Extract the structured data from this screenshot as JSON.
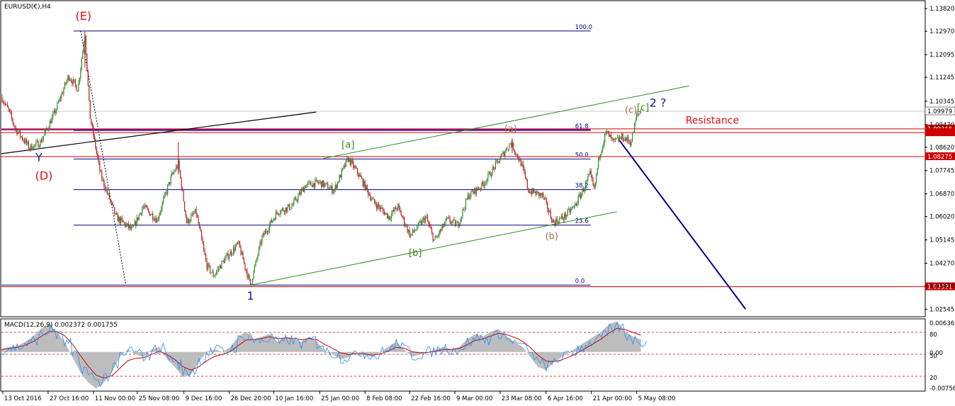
{
  "chart_data": {
    "type": "candlestick",
    "symbol_label": "EURUSD(€),H4",
    "y_axis": {
      "min": 1.0229,
      "max": 1.1409,
      "ticks": [
        "1.13820",
        "1.12970",
        "1.12095",
        "1.11245",
        "1.10345",
        "1.09470",
        "1.08620",
        "1.07745",
        "1.06870",
        "1.06020",
        "1.05145",
        "1.04270",
        "1.03420",
        "1.02545"
      ]
    },
    "x_axis": {
      "ticks": [
        "13 Oct 2016",
        "27 Oct 16:00",
        "11 Nov 00:00",
        "25 Nov 08:00",
        "9 Dec 16:00",
        "26 Dec 20:00",
        "10 Jan 16:00",
        "25 Jan 00:00",
        "8 Feb 08:00",
        "22 Feb 16:00",
        "9 Mar 00:00",
        "23 Mar 08:00",
        "6 Apr 16:00",
        "21 Apr 00:00",
        "5 May 08:00"
      ]
    },
    "price_path": [
      {
        "t": 0,
        "p": 1.105
      },
      {
        "t": 10,
        "p": 1.1
      },
      {
        "t": 20,
        "p": 1.093
      },
      {
        "t": 40,
        "p": 1.086
      },
      {
        "t": 55,
        "p": 1.088
      },
      {
        "t": 75,
        "p": 1.099
      },
      {
        "t": 95,
        "p": 1.113
      },
      {
        "t": 108,
        "p": 1.108
      },
      {
        "t": 118,
        "p": 1.129
      },
      {
        "t": 125,
        "p": 1.098
      },
      {
        "t": 140,
        "p": 1.076
      },
      {
        "t": 162,
        "p": 1.06
      },
      {
        "t": 185,
        "p": 1.055
      },
      {
        "t": 200,
        "p": 1.064
      },
      {
        "t": 220,
        "p": 1.059
      },
      {
        "t": 240,
        "p": 1.075
      },
      {
        "t": 250,
        "p": 1.08
      },
      {
        "t": 262,
        "p": 1.058
      },
      {
        "t": 275,
        "p": 1.062
      },
      {
        "t": 290,
        "p": 1.042
      },
      {
        "t": 300,
        "p": 1.038
      },
      {
        "t": 315,
        "p": 1.044
      },
      {
        "t": 335,
        "p": 1.05
      },
      {
        "t": 352,
        "p": 1.0345
      },
      {
        "t": 368,
        "p": 1.052
      },
      {
        "t": 390,
        "p": 1.062
      },
      {
        "t": 410,
        "p": 1.064
      },
      {
        "t": 430,
        "p": 1.072
      },
      {
        "t": 450,
        "p": 1.073
      },
      {
        "t": 470,
        "p": 1.07
      },
      {
        "t": 490,
        "p": 1.082
      },
      {
        "t": 505,
        "p": 1.076
      },
      {
        "t": 525,
        "p": 1.066
      },
      {
        "t": 548,
        "p": 1.06
      },
      {
        "t": 560,
        "p": 1.064
      },
      {
        "t": 578,
        "p": 1.053
      },
      {
        "t": 600,
        "p": 1.06
      },
      {
        "t": 612,
        "p": 1.051
      },
      {
        "t": 630,
        "p": 1.059
      },
      {
        "t": 645,
        "p": 1.057
      },
      {
        "t": 660,
        "p": 1.068
      },
      {
        "t": 680,
        "p": 1.072
      },
      {
        "t": 700,
        "p": 1.08
      },
      {
        "t": 720,
        "p": 1.088
      },
      {
        "t": 735,
        "p": 1.08
      },
      {
        "t": 745,
        "p": 1.07
      },
      {
        "t": 765,
        "p": 1.068
      },
      {
        "t": 780,
        "p": 1.058
      },
      {
        "t": 795,
        "p": 1.06
      },
      {
        "t": 810,
        "p": 1.064
      },
      {
        "t": 822,
        "p": 1.07
      },
      {
        "t": 832,
        "p": 1.076
      },
      {
        "t": 838,
        "p": 1.07
      },
      {
        "t": 845,
        "p": 1.083
      },
      {
        "t": 855,
        "p": 1.092
      },
      {
        "t": 865,
        "p": 1.088
      },
      {
        "t": 878,
        "p": 1.09
      },
      {
        "t": 890,
        "p": 1.088
      },
      {
        "t": 898,
        "p": 1.098
      },
      {
        "t": 904,
        "p": 1.0997
      }
    ],
    "hlines": [
      {
        "price": 1.0997,
        "color": "#c8c8c8",
        "label": "1.09979",
        "label_color": "#000000"
      },
      {
        "price": 1.0931,
        "color": "#cc0000",
        "label": "1.09316",
        "label_color": "#ffffff",
        "label_bg": "#cc0000"
      },
      {
        "price": 1.0917,
        "color": "#cc0000",
        "label": "",
        "label_color": "#ffffff",
        "label_bg": "#cc0000"
      },
      {
        "price": 1.0827,
        "color": "#cc0000",
        "label": "1.08275",
        "label_color": "#ffffff",
        "label_bg": "#cc0000"
      },
      {
        "price": 1.0339,
        "color": "#cc0000",
        "label": "1.03391",
        "label_color": "#ffffff",
        "label_bg": "#cc0000"
      }
    ],
    "fib_levels": [
      {
        "label": "100.0",
        "price": 1.1298
      },
      {
        "label": "61.8",
        "price": 1.0925
      },
      {
        "label": "50.0",
        "price": 1.0818
      },
      {
        "label": "38.2",
        "price": 1.0703
      },
      {
        "label": "23.6",
        "price": 1.057
      },
      {
        "label": "0.0",
        "price": 1.0345
      }
    ],
    "wave_labels": [
      {
        "text": "(E)",
        "t": 116,
        "p": 1.134,
        "color": "#e01010"
      },
      {
        "text": "Y",
        "t": 53,
        "p": 1.081,
        "color": "#1a1a9a"
      },
      {
        "text": "(D)",
        "t": 60,
        "p": 1.074,
        "color": "#e01010"
      },
      {
        "text": "[a]",
        "t": 490,
        "p": 1.086,
        "color": "#3a8a10"
      },
      {
        "text": "(a)",
        "t": 720,
        "p": 1.092,
        "color": "#a07050"
      },
      {
        "text": "(c)",
        "t": 890,
        "p": 1.099,
        "color": "#a07050"
      },
      {
        "text": "[c]",
        "t": 907,
        "p": 1.1,
        "color": "#3a8a10"
      },
      {
        "text": "2 ?",
        "t": 928,
        "p": 1.1015,
        "color": "#1a1a9a"
      },
      {
        "text": "Resistance",
        "t": 1005,
        "p": 1.095,
        "color": "#e01010"
      },
      {
        "text": "(b)",
        "t": 778,
        "p": 1.0518,
        "color": "#a07050"
      },
      {
        "text": "[b]",
        "t": 585,
        "p": 1.0455,
        "color": "#3a8a10"
      },
      {
        "text": "1",
        "t": 352,
        "p": 1.029,
        "color": "#1a1a9a"
      }
    ],
    "macd": {
      "label": "MACD(12,26,9) 0.002372 0.001755",
      "axis_labels": [
        "0.00636",
        "80",
        "0.00",
        "50",
        "20",
        "-0.00756"
      ],
      "histogram": [
        0.0005,
        0.001,
        0.0012,
        0.002,
        0.003,
        0.0045,
        0.0055,
        0.004,
        0.002,
        -0.001,
        -0.004,
        -0.006,
        -0.0072,
        -0.006,
        -0.004,
        -0.001,
        0.0005,
        -0.0005,
        -0.001,
        0.0005,
        0.001,
        -0.0015,
        -0.003,
        -0.005,
        -0.0045,
        -0.002,
        0.0,
        0.0005,
        0.0,
        0.001,
        0.003,
        0.004,
        0.0025,
        0.003,
        0.0035,
        0.002,
        0.003,
        0.0025,
        0.002,
        0.003,
        0.002,
        0.0,
        -0.0005,
        -0.0015,
        -0.001,
        0.0,
        -0.0005,
        -0.001,
        0.0,
        0.001,
        0.002,
        0.0005,
        -0.001,
        -0.0005,
        0.0,
        0.0005,
        0.001,
        0.0005,
        0.001,
        0.0025,
        0.0035,
        0.003,
        0.004,
        0.0045,
        0.003,
        0.002,
        0.001,
        -0.001,
        -0.003,
        -0.0035,
        -0.002,
        -0.001,
        0.0,
        0.001,
        0.002,
        0.003,
        0.004,
        0.0055,
        0.006,
        0.004,
        0.003,
        0.0025
      ]
    }
  }
}
